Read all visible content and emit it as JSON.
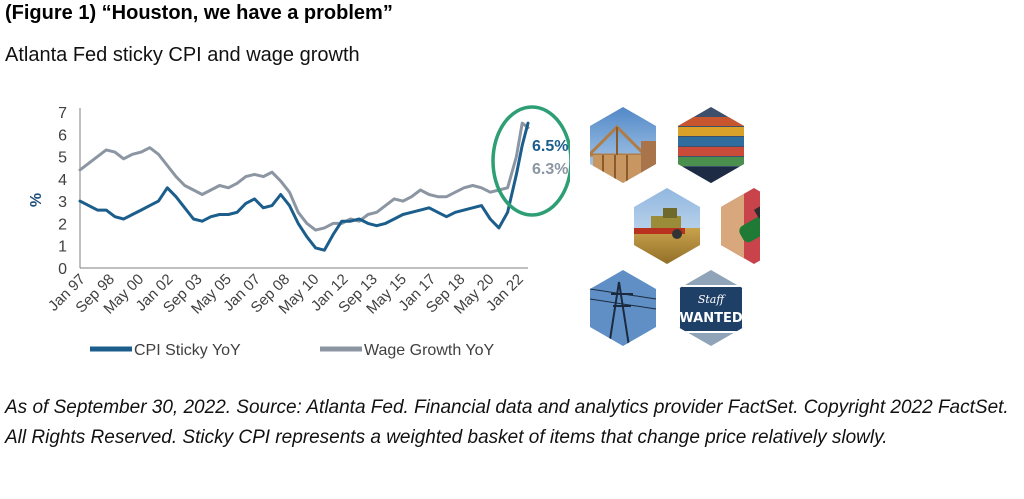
{
  "figure": {
    "title": "(Figure 1) “Houston, we have a problem”",
    "subtitle": "Atlanta Fed sticky CPI and wage growth"
  },
  "chart_data": {
    "type": "line",
    "title": "",
    "xlabel": "",
    "ylabel": "%",
    "ylim": [
      0,
      7
    ],
    "yticks": [
      0,
      1,
      2,
      3,
      4,
      5,
      6,
      7
    ],
    "x_tick_labels": [
      "Jan 97",
      "Sep 98",
      "May 00",
      "Jan 02",
      "Sep 03",
      "May 05",
      "Jan 07",
      "Sep 08",
      "May 10",
      "Jan 12",
      "Sep 13",
      "May 15",
      "Jan 17",
      "Sep 18",
      "May 20",
      "Jan 22"
    ],
    "x_start": "1997-01",
    "x_end": "2022-09",
    "grid": false,
    "legend_position": "bottom",
    "series": [
      {
        "name": "CPI Sticky YoY",
        "color": "#1b5e8c",
        "end_label": "6.5%",
        "points": [
          [
            "1997-01",
            3.0
          ],
          [
            "1997-07",
            2.8
          ],
          [
            "1998-01",
            2.6
          ],
          [
            "1998-07",
            2.6
          ],
          [
            "1999-01",
            2.3
          ],
          [
            "1999-07",
            2.2
          ],
          [
            "2000-01",
            2.4
          ],
          [
            "2000-07",
            2.6
          ],
          [
            "2001-01",
            2.8
          ],
          [
            "2001-07",
            3.0
          ],
          [
            "2002-01",
            3.6
          ],
          [
            "2002-07",
            3.2
          ],
          [
            "2003-01",
            2.7
          ],
          [
            "2003-07",
            2.2
          ],
          [
            "2004-01",
            2.1
          ],
          [
            "2004-07",
            2.3
          ],
          [
            "2005-01",
            2.4
          ],
          [
            "2005-07",
            2.4
          ],
          [
            "2006-01",
            2.5
          ],
          [
            "2006-07",
            2.9
          ],
          [
            "2007-01",
            3.1
          ],
          [
            "2007-07",
            2.7
          ],
          [
            "2008-01",
            2.8
          ],
          [
            "2008-07",
            3.3
          ],
          [
            "2009-01",
            2.8
          ],
          [
            "2009-07",
            2.0
          ],
          [
            "2010-01",
            1.4
          ],
          [
            "2010-07",
            0.9
          ],
          [
            "2011-01",
            0.8
          ],
          [
            "2011-07",
            1.5
          ],
          [
            "2012-01",
            2.1
          ],
          [
            "2012-07",
            2.1
          ],
          [
            "2013-01",
            2.2
          ],
          [
            "2013-07",
            2.0
          ],
          [
            "2014-01",
            1.9
          ],
          [
            "2014-07",
            2.0
          ],
          [
            "2015-01",
            2.2
          ],
          [
            "2015-07",
            2.4
          ],
          [
            "2016-01",
            2.5
          ],
          [
            "2016-07",
            2.6
          ],
          [
            "2017-01",
            2.7
          ],
          [
            "2017-07",
            2.5
          ],
          [
            "2018-01",
            2.3
          ],
          [
            "2018-07",
            2.5
          ],
          [
            "2019-01",
            2.6
          ],
          [
            "2019-07",
            2.7
          ],
          [
            "2020-01",
            2.8
          ],
          [
            "2020-07",
            2.2
          ],
          [
            "2021-01",
            1.8
          ],
          [
            "2021-07",
            2.5
          ],
          [
            "2022-01",
            4.2
          ],
          [
            "2022-05",
            5.5
          ],
          [
            "2022-09",
            6.5
          ]
        ]
      },
      {
        "name": "Wage Growth YoY",
        "color": "#8c96a3",
        "end_label": "6.3%",
        "points": [
          [
            "1997-01",
            4.4
          ],
          [
            "1997-07",
            4.7
          ],
          [
            "1998-01",
            5.0
          ],
          [
            "1998-07",
            5.3
          ],
          [
            "1999-01",
            5.2
          ],
          [
            "1999-07",
            4.9
          ],
          [
            "2000-01",
            5.1
          ],
          [
            "2000-07",
            5.2
          ],
          [
            "2001-01",
            5.4
          ],
          [
            "2001-07",
            5.1
          ],
          [
            "2002-01",
            4.6
          ],
          [
            "2002-07",
            4.1
          ],
          [
            "2003-01",
            3.7
          ],
          [
            "2003-07",
            3.5
          ],
          [
            "2004-01",
            3.3
          ],
          [
            "2004-07",
            3.5
          ],
          [
            "2005-01",
            3.7
          ],
          [
            "2005-07",
            3.6
          ],
          [
            "2006-01",
            3.8
          ],
          [
            "2006-07",
            4.1
          ],
          [
            "2007-01",
            4.2
          ],
          [
            "2007-07",
            4.1
          ],
          [
            "2008-01",
            4.3
          ],
          [
            "2008-07",
            3.9
          ],
          [
            "2009-01",
            3.4
          ],
          [
            "2009-07",
            2.5
          ],
          [
            "2010-01",
            2.0
          ],
          [
            "2010-07",
            1.7
          ],
          [
            "2011-01",
            1.8
          ],
          [
            "2011-07",
            2.0
          ],
          [
            "2012-01",
            2.0
          ],
          [
            "2012-07",
            2.2
          ],
          [
            "2013-01",
            2.1
          ],
          [
            "2013-07",
            2.4
          ],
          [
            "2014-01",
            2.5
          ],
          [
            "2014-07",
            2.8
          ],
          [
            "2015-01",
            3.1
          ],
          [
            "2015-07",
            3.0
          ],
          [
            "2016-01",
            3.2
          ],
          [
            "2016-07",
            3.5
          ],
          [
            "2017-01",
            3.3
          ],
          [
            "2017-07",
            3.2
          ],
          [
            "2018-01",
            3.2
          ],
          [
            "2018-07",
            3.4
          ],
          [
            "2019-01",
            3.6
          ],
          [
            "2019-07",
            3.7
          ],
          [
            "2020-01",
            3.6
          ],
          [
            "2020-07",
            3.4
          ],
          [
            "2021-01",
            3.5
          ],
          [
            "2021-07",
            3.6
          ],
          [
            "2022-01",
            5.0
          ],
          [
            "2022-05",
            6.5
          ],
          [
            "2022-09",
            6.3
          ]
        ]
      }
    ],
    "annotation": {
      "shape": "ellipse",
      "color": "#2e9e74",
      "target": "2021-2022 surge"
    }
  },
  "images": [
    {
      "name": "house-framing-image",
      "icon": "construction"
    },
    {
      "name": "shipping-containers-image",
      "icon": "containers"
    },
    {
      "name": "wheat-harvester-image",
      "icon": "harvester"
    },
    {
      "name": "fuel-pump-image",
      "icon": "fuel-nozzle"
    },
    {
      "name": "power-lines-image",
      "icon": "power-tower"
    },
    {
      "name": "staff-wanted-image",
      "icon": "hiring-sign",
      "sign_line1": "Staff",
      "sign_line2": "WANTED"
    }
  ],
  "footnote": "As of September 30, 2022. Source: Atlanta Fed. Financial data and analytics provider FactSet. Copyright 2022 FactSet. All Rights Reserved. Sticky CPI represents a weighted basket of items that change price relatively slowly."
}
